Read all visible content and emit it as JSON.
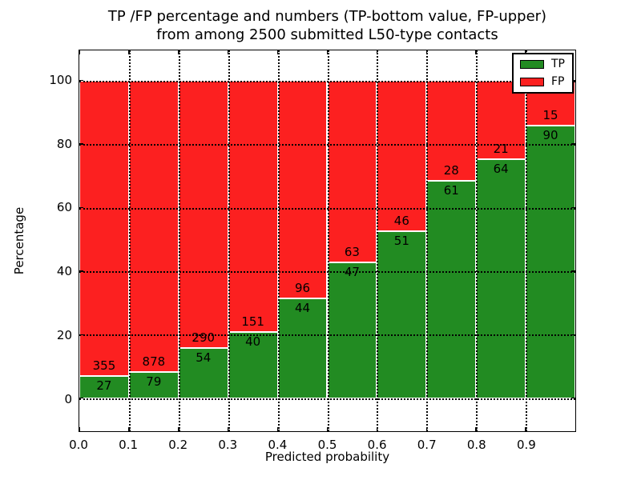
{
  "figure": {
    "title_line1": "TP /FP percentage and numbers (TP-bottom value, FP-upper)",
    "title_line2": "from among 2500 submitted L50-type contacts",
    "background": "#ffffff"
  },
  "chart_data": {
    "type": "bar",
    "stacked": true,
    "normalized_to_percent": true,
    "title": "TP /FP percentage and numbers (TP-bottom value, FP-upper) from among 2500 submitted L50-type contacts",
    "total_submitted": 2500,
    "xlabel": "Predicted probability",
    "ylabel": "Percentage",
    "categories": [
      "0.0",
      "0.1",
      "0.2",
      "0.3",
      "0.4",
      "0.5",
      "0.6",
      "0.7",
      "0.8",
      "0.9"
    ],
    "series": [
      {
        "name": "TP",
        "color": "#228b22",
        "counts": [
          27,
          79,
          54,
          40,
          44,
          47,
          51,
          61,
          64,
          90
        ]
      },
      {
        "name": "FP",
        "color": "#fc2020",
        "counts": [
          355,
          878,
          290,
          151,
          96,
          63,
          46,
          28,
          21,
          15
        ]
      }
    ],
    "tp_percent": [
      7.07,
      8.26,
      15.7,
      20.94,
      31.43,
      42.73,
      52.58,
      68.54,
      75.29,
      85.71
    ],
    "yticks": [
      0,
      20,
      40,
      60,
      80,
      100
    ],
    "xticks": [
      "0.0",
      "0.1",
      "0.2",
      "0.3",
      "0.4",
      "0.5",
      "0.6",
      "0.7",
      "0.8",
      "0.9"
    ],
    "ylim": [
      -10.4,
      109.5
    ],
    "xlim": [
      0,
      1
    ],
    "grid": "dotted",
    "legend": {
      "position": "upper right",
      "entries": [
        {
          "label": "TP",
          "color": "#228b22"
        },
        {
          "label": "FP",
          "color": "#fc2020"
        }
      ]
    }
  }
}
